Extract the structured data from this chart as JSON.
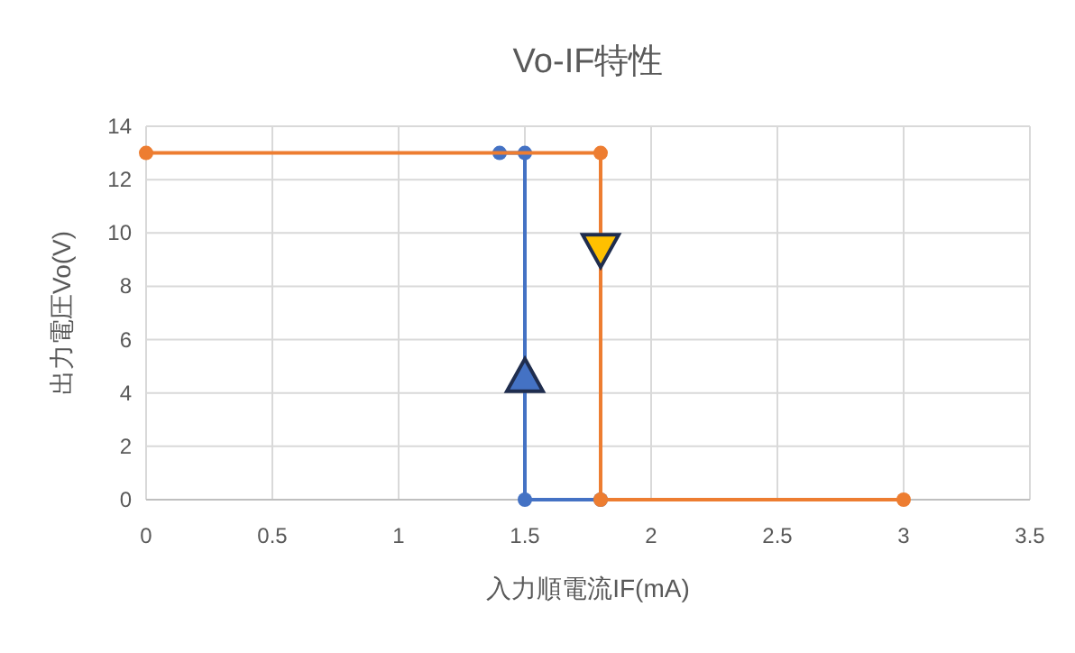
{
  "chart_data": {
    "type": "line",
    "title": "Vo-IF特性",
    "xlabel": "入力順電流IF(mA)",
    "ylabel": "出力電圧Vo(V)",
    "xlim": [
      0,
      3.5
    ],
    "xticks": [
      0,
      0.5,
      1,
      1.5,
      2,
      2.5,
      3,
      3.5
    ],
    "ylim": [
      0,
      14
    ],
    "yticks": [
      0,
      2,
      4,
      6,
      8,
      10,
      12,
      14
    ],
    "grid": true,
    "marker": "circle",
    "line_style": "solid",
    "series": [
      {
        "color": "#4472c4",
        "x": [
          1.4,
          1.5,
          1.5,
          1.8
        ],
        "values": [
          13,
          13,
          0,
          0
        ]
      },
      {
        "color": "#ed7d31",
        "x": [
          0,
          1.8,
          1.8,
          3
        ],
        "values": [
          13,
          13,
          0,
          0
        ]
      }
    ]
  }
}
